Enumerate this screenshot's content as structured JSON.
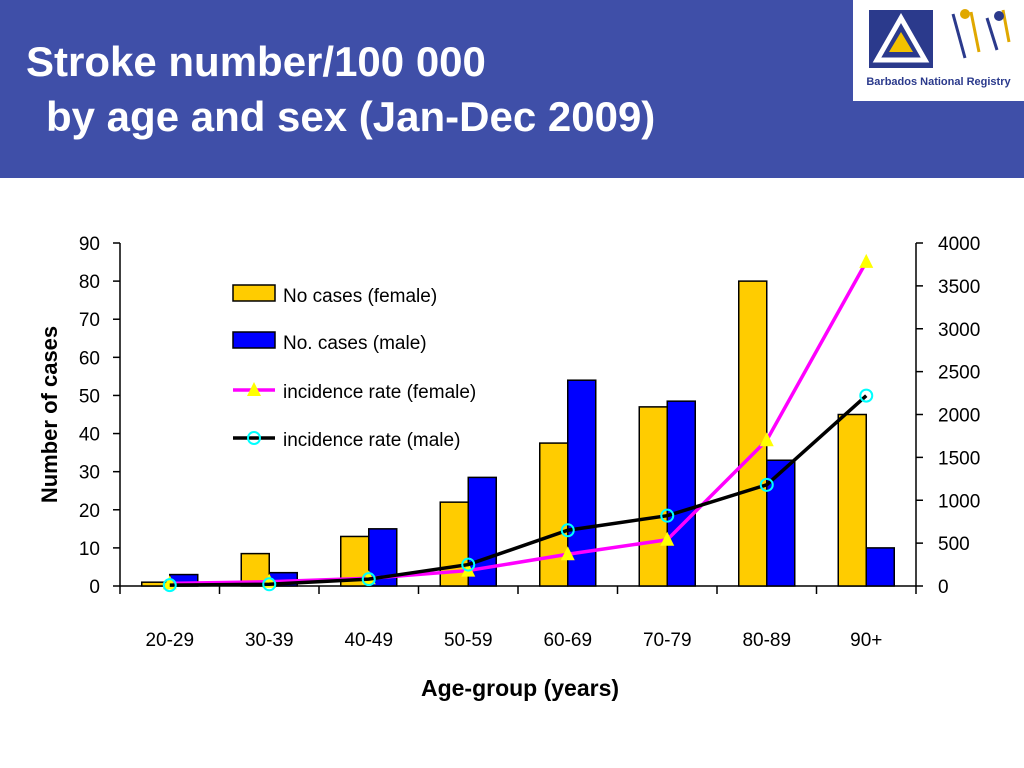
{
  "header": {
    "title_line1": "Stroke number/100 000",
    "title_line2": "by age and sex (Jan-Dec 2009)",
    "background": "#3f4fa8",
    "logo_text": "Barbados National Registry"
  },
  "chart_data": {
    "type": "bar",
    "categories": [
      "20-29",
      "30-39",
      "40-49",
      "50-59",
      "60-69",
      "70-79",
      "80-89",
      "90+"
    ],
    "xlabel": "Age-group (years)",
    "ylabel": "Number of cases",
    "ylim": [
      0,
      90
    ],
    "y_ticks": [
      0,
      10,
      20,
      30,
      40,
      50,
      60,
      70,
      80,
      90
    ],
    "y2lim": [
      0,
      4000
    ],
    "y2_ticks": [
      0,
      500,
      1000,
      1500,
      2000,
      2500,
      3000,
      3500,
      4000
    ],
    "legend_position": "top-left",
    "bar_series": [
      {
        "name": "No cases (female)",
        "color": "#ffcc00",
        "values": [
          1,
          8.5,
          13,
          22,
          37.5,
          47,
          80,
          45
        ]
      },
      {
        "name": "No. cases (male)",
        "color": "#0000ff",
        "values": [
          3,
          3.5,
          15,
          28.5,
          54,
          48.5,
          33,
          10
        ]
      }
    ],
    "line_series": [
      {
        "name": "incidence rate (female)",
        "color": "#ff00ff",
        "marker": "triangle",
        "marker_color": "#ffff00",
        "values": [
          30,
          50,
          90,
          180,
          370,
          540,
          1700,
          3780
        ]
      },
      {
        "name": "incidence rate (male)",
        "color": "#000000",
        "marker": "circle",
        "marker_color": "#00ffff",
        "values": [
          10,
          20,
          80,
          250,
          650,
          820,
          1180,
          2220
        ]
      }
    ]
  }
}
